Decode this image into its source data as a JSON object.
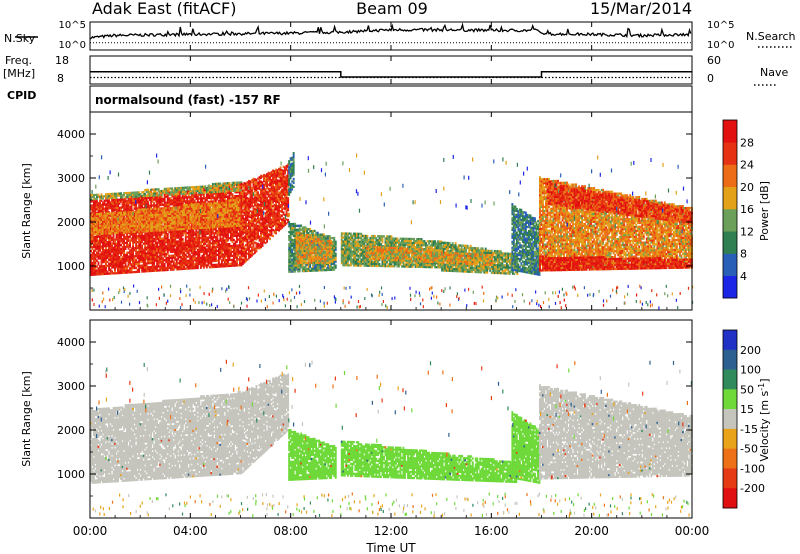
{
  "header": {
    "title": "Adak East (fitACF)",
    "beam": "Beam 09",
    "date": "15/Mar/2014"
  },
  "top_panel": {
    "nsky_label": "N.Sky",
    "nsearch_label": "N.Search",
    "left_ticks": [
      "10^5",
      "10^0"
    ],
    "right_ticks": [
      "10^5",
      "10^0"
    ],
    "freq_label": "Freq.",
    "freq_unit": "[MHz]",
    "freq_ticks": [
      "18",
      "8"
    ],
    "nave_label": "Nave",
    "nave_ticks": [
      "60",
      "0"
    ],
    "cpid_label": "CPID",
    "cpid_text": "normalsound (fast) -157 RF"
  },
  "axes": {
    "ylabel": "Slant Range [km]",
    "xlabel": "Time UT",
    "y_ticks": [
      "1000",
      "2000",
      "3000",
      "4000"
    ],
    "x_ticks": [
      "00:00",
      "04:00",
      "08:00",
      "12:00",
      "16:00",
      "20:00",
      "00:00"
    ]
  },
  "colorbars": {
    "power": {
      "label": "Power [dB]",
      "ticks": [
        "4",
        "8",
        "12",
        "16",
        "20",
        "24",
        "28"
      ],
      "colors": [
        "#1c25e6",
        "#2a5fb7",
        "#2f7f52",
        "#6c9f5a",
        "#e3a11a",
        "#ed6d17",
        "#e63212",
        "#e31010"
      ]
    },
    "velocity": {
      "label": "Velocity [m s",
      "label_sup": "-1",
      "label_end": "]",
      "ticks": [
        "200",
        "100",
        "50",
        "15",
        "-15",
        "-50",
        "-100",
        "-200"
      ],
      "colors": [
        "#2131c5",
        "#2d6090",
        "#2f8a5c",
        "#6fd93a",
        "#c5c5bd",
        "#e8a31b",
        "#ee7118",
        "#e53a14",
        "#e11010"
      ]
    }
  },
  "chart_data": [
    {
      "type": "line",
      "title": "N.Sky / N.Search",
      "x_range_hours": [
        0,
        24
      ],
      "ylim_log10": [
        0,
        5
      ],
      "x_hours": [
        0,
        1,
        4,
        8,
        10,
        12,
        14,
        16,
        17.9,
        18,
        20,
        22,
        24
      ],
      "series": [
        {
          "name": "N.Sky",
          "log10_values": [
            2.2,
            2.6,
            2.8,
            3.0,
            3.2,
            3.6,
            3.6,
            3.5,
            3.5,
            2.9,
            2.8,
            2.6,
            2.8
          ]
        },
        {
          "name": "N.Search",
          "log10_values": [
            1.3,
            1.3,
            1.3,
            1.3,
            1.3,
            1.3,
            1.3,
            1.3,
            1.3,
            1.3,
            1.3,
            1.3,
            1.3
          ]
        }
      ]
    },
    {
      "type": "line",
      "title": "Freq. [MHz] / Nave",
      "x_range_hours": [
        0,
        24
      ],
      "freq_ylim": [
        8,
        18
      ],
      "x_hours": [
        0,
        10.0,
        10.0,
        18.0,
        18.0,
        24
      ],
      "series": [
        {
          "name": "Freq.",
          "values": [
            12.4,
            12.4,
            10.5,
            10.5,
            12.4,
            12.4
          ]
        },
        {
          "name": "Nave",
          "values": [
            14,
            14,
            14,
            14,
            14,
            14
          ]
        }
      ]
    },
    {
      "type": "heatmap",
      "title": "Power [dB]",
      "x_unit": "hours UT",
      "y_unit": "km",
      "xlim": [
        0,
        24
      ],
      "ylim": [
        0,
        4500
      ],
      "bands": [
        {
          "t0": 0.0,
          "t1": 6.0,
          "r_start0": 780,
          "r_start1": 1000,
          "r_end0": 2450,
          "r_end1": 2850,
          "dB": 28
        },
        {
          "t0": 0.0,
          "t1": 6.0,
          "r_start0": 1700,
          "r_start1": 1900,
          "r_end0": 2150,
          "r_end1": 2500,
          "dB": 21
        },
        {
          "t0": 0.0,
          "t1": 6.0,
          "r_start0": 2500,
          "r_start1": 2700,
          "r_end0": 2600,
          "r_end1": 2900,
          "dB": 16
        },
        {
          "t0": 6.0,
          "t1": 7.9,
          "r_start0": 1000,
          "r_start1": 2000,
          "r_end0": 2850,
          "r_end1": 3300,
          "dB": 27
        },
        {
          "t0": 7.9,
          "t1": 8.1,
          "r_start0": 2600,
          "r_start1": 2800,
          "r_end0": 3400,
          "r_end1": 3600,
          "dB": 10
        },
        {
          "t0": 7.9,
          "t1": 9.8,
          "r_start0": 850,
          "r_start1": 900,
          "r_end0": 2000,
          "r_end1": 1600,
          "dB": 12
        },
        {
          "t0": 8.2,
          "t1": 9.6,
          "r_start0": 1050,
          "r_start1": 1050,
          "r_end0": 1750,
          "r_end1": 1550,
          "dB": 18
        },
        {
          "t0": 10.0,
          "t1": 14.0,
          "r_start0": 1000,
          "r_start1": 950,
          "r_end0": 1750,
          "r_end1": 1550,
          "dB": 14
        },
        {
          "t0": 14.0,
          "t1": 17.0,
          "r_start0": 880,
          "r_start1": 800,
          "r_end0": 1550,
          "r_end1": 1250,
          "dB": 14
        },
        {
          "t0": 11.0,
          "t1": 16.0,
          "r_start0": 1150,
          "r_start1": 1000,
          "r_end0": 1450,
          "r_end1": 1250,
          "dB": 18
        },
        {
          "t0": 16.8,
          "t1": 17.9,
          "r_start0": 900,
          "r_start1": 780,
          "r_end0": 2400,
          "r_end1": 2000,
          "dB": 10
        },
        {
          "t0": 17.9,
          "t1": 24.0,
          "r_start0": 880,
          "r_start1": 950,
          "r_end0": 3000,
          "r_end1": 2300,
          "dB": 20
        },
        {
          "t0": 17.9,
          "t1": 24.0,
          "r_start0": 880,
          "r_start1": 950,
          "r_end0": 1200,
          "r_end1": 1150,
          "dB": 28
        },
        {
          "t0": 18.2,
          "t1": 24.0,
          "r_start0": 2400,
          "r_start1": 1950,
          "r_end0": 2900,
          "r_end1": 2250,
          "dB": 26
        }
      ]
    },
    {
      "type": "heatmap",
      "title": "Velocity [m s-1]",
      "x_unit": "hours UT",
      "y_unit": "km",
      "xlim": [
        0,
        24
      ],
      "ylim": [
        0,
        4500
      ],
      "bands": [
        {
          "t0": 0.0,
          "t1": 6.0,
          "r_start0": 780,
          "r_start1": 1000,
          "r_end0": 2450,
          "r_end1": 2850,
          "v": 0
        },
        {
          "t0": 6.0,
          "t1": 7.9,
          "r_start0": 1000,
          "r_start1": 2000,
          "r_end0": 2850,
          "r_end1": 3300,
          "v": 0
        },
        {
          "t0": 7.9,
          "t1": 9.8,
          "r_start0": 850,
          "r_start1": 900,
          "r_end0": 2000,
          "r_end1": 1600,
          "v": 30
        },
        {
          "t0": 10.0,
          "t1": 17.0,
          "r_start0": 950,
          "r_start1": 800,
          "r_end0": 1750,
          "r_end1": 1250,
          "v": 30
        },
        {
          "t0": 16.8,
          "t1": 17.9,
          "r_start0": 900,
          "r_start1": 780,
          "r_end0": 2400,
          "r_end1": 2000,
          "v": 30
        },
        {
          "t0": 17.9,
          "t1": 24.0,
          "r_start0": 880,
          "r_start1": 950,
          "r_end0": 3000,
          "r_end1": 2300,
          "v": 0
        }
      ]
    }
  ]
}
